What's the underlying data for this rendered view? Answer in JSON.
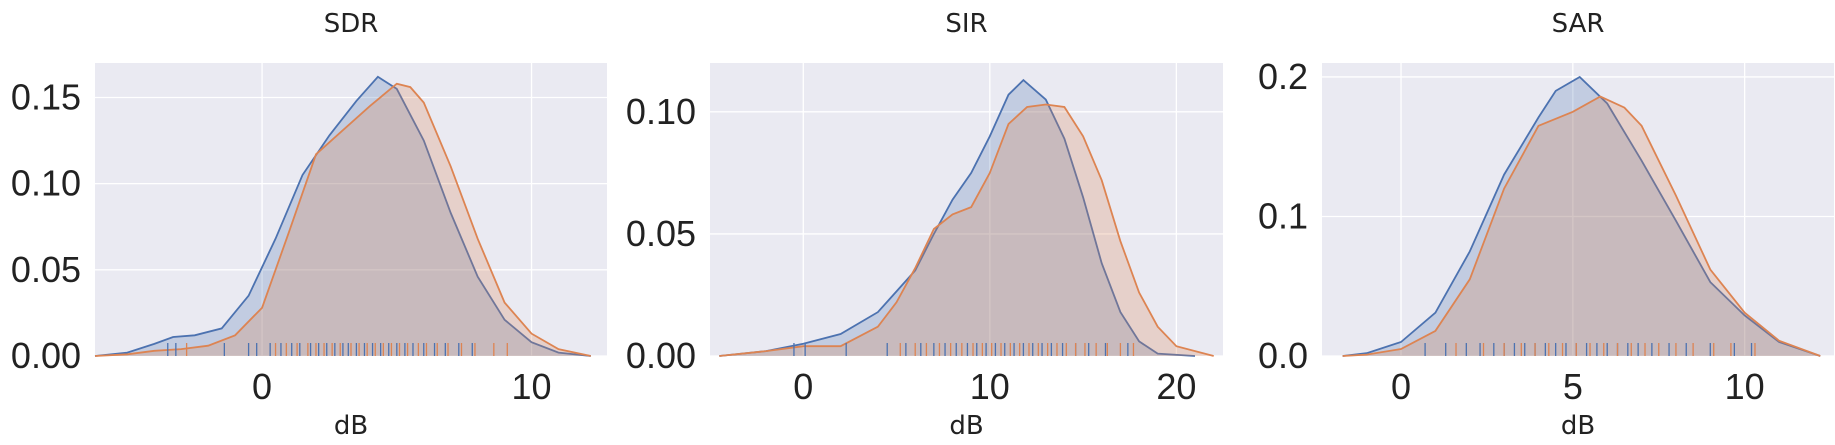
{
  "colors": {
    "series1": "#4c72b0",
    "series2": "#dd8452",
    "panel_bg": "#eaeaf2",
    "grid": "#ffffff"
  },
  "chart_data": [
    {
      "type": "area",
      "title": "SDR",
      "xlabel": "dB",
      "ylabel": "",
      "xlim": [
        -6.2,
        12.8
      ],
      "ylim": [
        0,
        0.17
      ],
      "xticks": [
        0,
        10
      ],
      "yticks": [
        0.0,
        0.05,
        0.1,
        0.15
      ],
      "ytick_labels": [
        "0.00",
        "0.05",
        "0.10",
        "0.15"
      ],
      "grid": true,
      "series": [
        {
          "x": [
            -6.2,
            -5,
            -4,
            -3.3,
            -2.5,
            -1.5,
            -0.5,
            0.5,
            1.5,
            2.5,
            3.5,
            4.3,
            5,
            6,
            7,
            8,
            9,
            10,
            11,
            12.2
          ],
          "y": [
            0.0,
            0.002,
            0.007,
            0.011,
            0.012,
            0.016,
            0.035,
            0.068,
            0.105,
            0.128,
            0.148,
            0.162,
            0.155,
            0.125,
            0.083,
            0.046,
            0.021,
            0.008,
            0.002,
            0.0
          ],
          "rug": [
            -3.5,
            -3.2,
            -1.4,
            -0.5,
            -0.2,
            0.3,
            0.7,
            1.1,
            1.4,
            1.8,
            2.1,
            2.4,
            2.7,
            3.0,
            3.2,
            3.5,
            3.8,
            4.1,
            4.4,
            4.7,
            5.0,
            5.3,
            5.6,
            6.0,
            6.4,
            6.8,
            7.3,
            7.8
          ]
        },
        {
          "x": [
            -6.2,
            -5,
            -4,
            -3,
            -2,
            -1,
            0,
            1,
            2,
            3,
            4,
            5,
            5.5,
            6,
            7,
            8,
            9,
            10,
            11,
            12.2
          ],
          "y": [
            0.0,
            0.001,
            0.003,
            0.004,
            0.006,
            0.012,
            0.028,
            0.072,
            0.117,
            0.131,
            0.145,
            0.158,
            0.156,
            0.147,
            0.11,
            0.068,
            0.031,
            0.013,
            0.004,
            0.0
          ],
          "rug": [
            -2.8,
            0.5,
            0.9,
            1.3,
            1.7,
            2.0,
            2.3,
            2.6,
            2.9,
            3.3,
            3.6,
            3.9,
            4.2,
            4.5,
            4.8,
            5.1,
            5.4,
            5.8,
            6.1,
            6.5,
            6.9,
            7.4,
            7.9,
            8.6,
            9.1
          ]
        }
      ]
    },
    {
      "type": "area",
      "title": "SIR",
      "xlabel": "dB",
      "ylabel": "",
      "xlim": [
        -5,
        22.5
      ],
      "ylim": [
        0,
        0.12
      ],
      "xticks": [
        0,
        10,
        20
      ],
      "yticks": [
        0.0,
        0.05,
        0.1
      ],
      "ytick_labels": [
        "0.00",
        "0.05",
        "0.10"
      ],
      "grid": true,
      "series": [
        {
          "x": [
            -4.5,
            -2,
            0,
            2,
            4,
            6,
            7,
            8,
            9,
            10,
            11,
            11.8,
            13,
            14,
            15,
            16,
            17,
            18,
            19,
            21
          ],
          "y": [
            0.0,
            0.002,
            0.005,
            0.009,
            0.018,
            0.035,
            0.05,
            0.064,
            0.075,
            0.09,
            0.107,
            0.113,
            0.105,
            0.089,
            0.065,
            0.038,
            0.018,
            0.006,
            0.001,
            0.0
          ],
          "rug": [
            -0.5,
            0.1,
            2.3,
            4.5,
            5.5,
            6.3,
            7.0,
            7.6,
            8.2,
            8.8,
            9.3,
            9.8,
            10.3,
            10.8,
            11.3,
            11.8,
            12.3,
            12.8,
            13.3,
            13.9,
            14.6,
            15.3,
            16.2,
            17.4
          ]
        },
        {
          "x": [
            -4.5,
            -2,
            0,
            2,
            4,
            5,
            6,
            7,
            8,
            9,
            10,
            11,
            12,
            13,
            14,
            15,
            16,
            17,
            18,
            19,
            20,
            22
          ],
          "y": [
            0.0,
            0.002,
            0.004,
            0.004,
            0.012,
            0.022,
            0.036,
            0.052,
            0.058,
            0.061,
            0.075,
            0.095,
            0.102,
            0.103,
            0.102,
            0.09,
            0.072,
            0.047,
            0.026,
            0.012,
            0.004,
            0.0
          ],
          "rug": [
            5.2,
            6.0,
            6.6,
            7.3,
            7.9,
            8.5,
            9.1,
            9.6,
            10.1,
            10.6,
            11.1,
            11.6,
            12.1,
            12.6,
            13.1,
            13.6,
            14.1,
            14.6,
            15.1,
            15.7,
            16.3,
            17.0,
            17.7
          ]
        }
      ]
    },
    {
      "type": "area",
      "title": "SAR",
      "xlabel": "dB",
      "ylabel": "",
      "xlim": [
        -2.3,
        12.6
      ],
      "ylim": [
        0,
        0.21
      ],
      "xticks": [
        0,
        5,
        10
      ],
      "yticks": [
        0.0,
        0.1,
        0.2
      ],
      "ytick_labels": [
        "0.0",
        "0.1",
        "0.2"
      ],
      "grid": true,
      "series": [
        {
          "x": [
            -1.7,
            -1,
            0,
            1,
            2,
            3,
            4,
            4.5,
            5.2,
            6,
            7,
            8,
            9,
            10,
            11,
            12.2
          ],
          "y": [
            0.0,
            0.002,
            0.01,
            0.031,
            0.075,
            0.13,
            0.171,
            0.19,
            0.2,
            0.181,
            0.14,
            0.097,
            0.053,
            0.029,
            0.01,
            0.0
          ],
          "rug": [
            0.7,
            1.3,
            1.9,
            2.3,
            2.7,
            3.0,
            3.3,
            3.6,
            3.9,
            4.2,
            4.5,
            4.8,
            5.1,
            5.4,
            5.7,
            6.0,
            6.3,
            6.6,
            6.9,
            7.3,
            7.8,
            8.3,
            9.0,
            9.7,
            10.2
          ]
        },
        {
          "x": [
            -1.7,
            -1,
            0,
            1,
            2,
            3,
            4,
            5,
            5.8,
            6.5,
            7,
            8,
            9,
            10,
            11,
            12.2
          ],
          "y": [
            0.0,
            0.001,
            0.005,
            0.018,
            0.055,
            0.12,
            0.165,
            0.175,
            0.186,
            0.178,
            0.165,
            0.115,
            0.062,
            0.031,
            0.011,
            0.0
          ],
          "rug": [
            1.6,
            2.4,
            3.0,
            3.5,
            3.9,
            4.3,
            4.7,
            5.1,
            5.5,
            5.9,
            6.3,
            6.7,
            7.1,
            7.5,
            8.0,
            8.5,
            9.1,
            9.6,
            10.3
          ]
        }
      ]
    }
  ]
}
